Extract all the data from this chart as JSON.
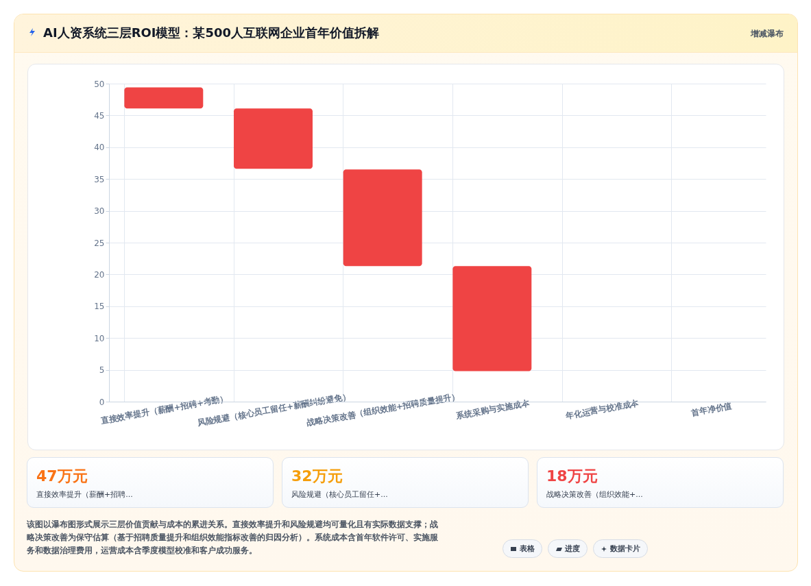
{
  "chart_data": {
    "type": "bar",
    "title": "AI人资系统三层ROI模型：某500人互联网企业首年价值拆解",
    "categories": [
      "直接效率提升（薪酬+招聘+考勤）",
      "风险规避（核心员工留任+薪酬纠纷避免）",
      "战略决策改善（组织效能+招聘质量提升）",
      "系统采购与实施成本",
      "年化运营与校准成本",
      "首年净价值"
    ],
    "base": [
      46.1,
      36.6,
      21.3,
      4.8,
      null,
      null
    ],
    "values": [
      3.3,
      9.5,
      15.2,
      16.5,
      null,
      null
    ],
    "color": "#ef4444",
    "ylim": [
      0,
      50
    ],
    "yticks": [
      0,
      5,
      10,
      15,
      20,
      25,
      30,
      35,
      40,
      45,
      50
    ],
    "grid": true,
    "legend": false,
    "annotations": [
      "增减瀑布",
      "47万元",
      "直接效率提升（薪酬+招聘...",
      "32万元",
      "风险规避（核心员工留任+...",
      "18万元",
      "战略决策改善（组织效能+...",
      "该图以瀑布图形式展示三层价值贡献与成本的累进关系。直接效率提升和风险规避均可量化且有实际数据支撑；战略决策改善为保守估算（基于招聘质量提升和组织效能指标改善的归因分析）。系统成本含首年软件许可、实施服务和数据治理费用，运营成本含季度模型校准和客户成功服务。",
      "表格",
      "进度",
      "数据卡片"
    ]
  }
}
